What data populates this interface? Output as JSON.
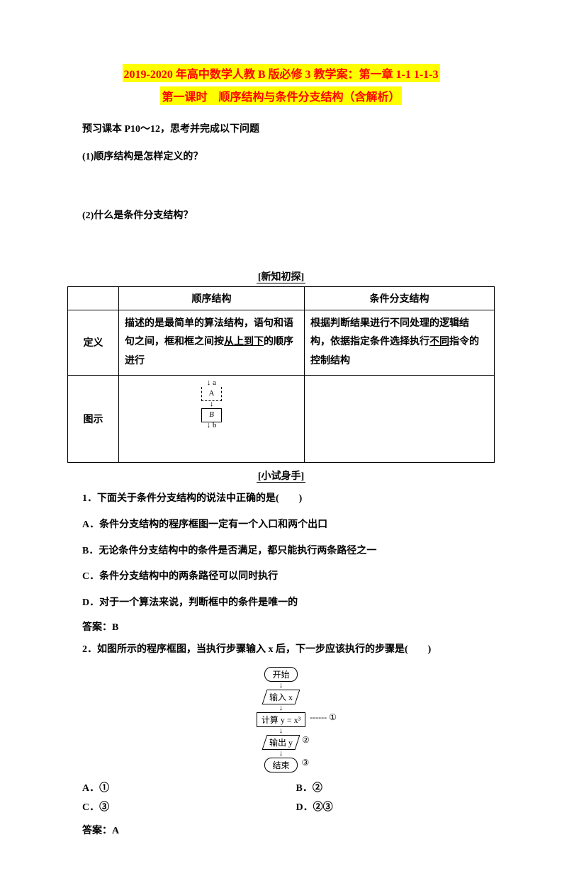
{
  "titles": {
    "line1": "2019-2020 年高中数学人教 B 版必修 3 教学案：第一章 1-1 1-1-3",
    "line2": "第一课时　顺序结构与条件分支结构（含解析）"
  },
  "preview": {
    "intro": "预习课本 P10～12，思考并完成以下问题",
    "q1": "(1)顺序结构是怎样定义的？",
    "q2": "(2)什么是条件分支结构？"
  },
  "section_labels": {
    "new_knowledge": "[新知初探]",
    "try_it": "[小试身手]"
  },
  "table": {
    "headers": {
      "col1": "顺序结构",
      "col2": "条件分支结构"
    },
    "row1_label": "定义",
    "row2_label": "图示",
    "def_seq_pre": "描述的是最简单的算法结构，语句和语句之间，框和框之间按",
    "def_seq_ul": "从上到下",
    "def_seq_post": "的顺序进行",
    "def_cond_pre": "根据判断结果进行不同处理的逻辑结构，依据指定条件选择执行",
    "def_cond_ul": "不同",
    "def_cond_post": "指令的控制结构",
    "diagram_seq": {
      "a": "a",
      "boxA": "A",
      "boxB": "B",
      "b": "b"
    }
  },
  "q1q": {
    "stem": "1．下面关于条件分支结构的说法中正确的是(　　)",
    "A": "A．条件分支结构的程序框图一定有一个入口和两个出口",
    "B": "B．无论条件分支结构中的条件是否满足，都只能执行两条路径之一",
    "C": "C．条件分支结构中的两条路径可以同时执行",
    "D": "D．对于一个算法来说，判断框中的条件是唯一的",
    "answer": "答案：B"
  },
  "q2q": {
    "stem": "2．如图所示的程序框图，当执行步骤输入 x 后，下一步应该执行的步骤是(　　)",
    "A": "A．①",
    "B": "B．②",
    "C": "C．③",
    "D": "D．②③",
    "answer": "答案：A"
  },
  "flowchart": {
    "start": "开始",
    "input": "输入 x",
    "compute": "计算 y = x³",
    "output": "输出 y",
    "end": "结束",
    "n1": "------ ①",
    "n2": "②",
    "n3": "③"
  }
}
